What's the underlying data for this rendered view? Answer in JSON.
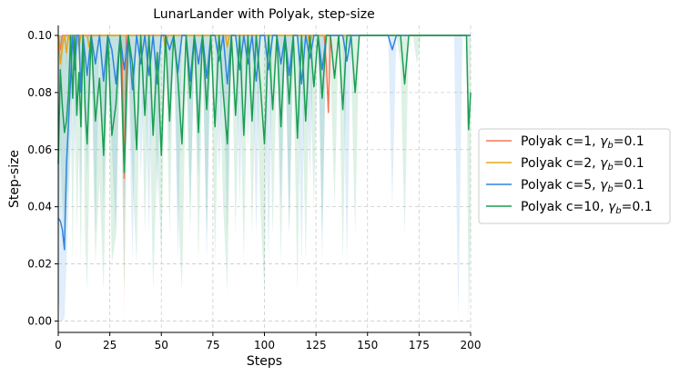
{
  "chart_data": {
    "type": "line",
    "title": "LunarLander with Polyak, step-size",
    "xlabel": "Steps",
    "ylabel": "Step-size",
    "xlim": [
      0,
      200
    ],
    "ylim": [
      -0.004,
      0.1035
    ],
    "xticks": [
      0,
      25,
      50,
      75,
      100,
      125,
      150,
      175,
      200
    ],
    "xtick_labels": [
      "0",
      "25",
      "50",
      "75",
      "100",
      "125",
      "150",
      "175",
      "200"
    ],
    "yticks": [
      0.0,
      0.02,
      0.04,
      0.06,
      0.08,
      0.1
    ],
    "ytick_labels": [
      "0.00",
      "0.02",
      "0.04",
      "0.06",
      "0.08",
      "0.10"
    ],
    "grid": true,
    "legend": {
      "position": "right"
    },
    "series": [
      {
        "name_prefix": "Polyak c=1, ",
        "name_gamma": "γ",
        "name_sub": "b",
        "name_suffix": "=0.1",
        "color": "#f0785a",
        "x": [
          0,
          1,
          2,
          3,
          4,
          5,
          6,
          7,
          8,
          9,
          10,
          29,
          30,
          31,
          32,
          33,
          34,
          35,
          127,
          128,
          129,
          130,
          131,
          132,
          133,
          200
        ],
        "values": [
          0.1,
          0.095,
          0.1,
          0.1,
          0.1,
          0.1,
          0.1,
          0.1,
          0.1,
          0.1,
          0.1,
          0.1,
          0.1,
          0.09,
          0.05,
          0.1,
          0.1,
          0.1,
          0.1,
          0.1,
          0.1,
          0.09,
          0.073,
          0.1,
          0.1,
          0.1
        ],
        "band_low": [
          0.1,
          0.092,
          0.1,
          0.1,
          0.1,
          0.1,
          0.1,
          0.1,
          0.1,
          0.1,
          0.1,
          0.1,
          0.1,
          0.06,
          0.0,
          0.1,
          0.1,
          0.1,
          0.1,
          0.1,
          0.1,
          0.085,
          0.07,
          0.1,
          0.1,
          0.1
        ]
      },
      {
        "name_prefix": "Polyak c=2, ",
        "name_gamma": "γ",
        "name_sub": "b",
        "name_suffix": "=0.1",
        "color": "#e6a817",
        "x": [
          0,
          1,
          2,
          3,
          4,
          5,
          6,
          7,
          8,
          9,
          10,
          11,
          12,
          14,
          15,
          16,
          17,
          50,
          51,
          52,
          53,
          54,
          80,
          81,
          82,
          83,
          84,
          85,
          120,
          121,
          122,
          123,
          200
        ],
        "values": [
          0.1,
          0.09,
          0.096,
          0.1,
          0.094,
          0.1,
          0.098,
          0.1,
          0.1,
          0.1,
          0.096,
          0.1,
          0.1,
          0.1,
          0.096,
          0.1,
          0.1,
          0.1,
          0.1,
          0.095,
          0.1,
          0.1,
          0.1,
          0.1,
          0.096,
          0.1,
          0.1,
          0.1,
          0.1,
          0.1,
          0.097,
          0.1,
          0.1
        ],
        "band_low": [
          0.1,
          0.085,
          0.09,
          0.1,
          0.088,
          0.1,
          0.094,
          0.1,
          0.1,
          0.1,
          0.09,
          0.1,
          0.1,
          0.1,
          0.09,
          0.1,
          0.1,
          0.1,
          0.1,
          0.09,
          0.1,
          0.1,
          0.1,
          0.1,
          0.09,
          0.1,
          0.1,
          0.1,
          0.1,
          0.1,
          0.092,
          0.1,
          0.1
        ]
      },
      {
        "name_prefix": "Polyak c=5, ",
        "name_gamma": "γ",
        "name_sub": "b",
        "name_suffix": "=0.1",
        "color": "#2f84e0",
        "x": [
          0,
          1,
          2,
          3,
          4,
          5,
          6,
          7,
          8,
          9,
          10,
          11,
          12,
          14,
          16,
          18,
          20,
          22,
          24,
          26,
          28,
          30,
          32,
          34,
          36,
          38,
          40,
          42,
          44,
          46,
          48,
          50,
          52,
          54,
          56,
          58,
          60,
          62,
          64,
          66,
          68,
          70,
          72,
          74,
          76,
          78,
          80,
          82,
          84,
          86,
          88,
          90,
          92,
          94,
          96,
          98,
          100,
          102,
          104,
          106,
          108,
          110,
          112,
          114,
          116,
          118,
          120,
          122,
          124,
          126,
          128,
          130,
          132,
          134,
          136,
          138,
          140,
          142,
          144,
          146,
          148,
          150,
          152,
          154,
          156,
          158,
          160,
          162,
          164,
          166,
          168,
          170,
          172,
          174,
          176,
          178,
          180,
          182,
          184,
          186,
          188,
          190,
          192,
          194,
          196,
          198,
          200
        ],
        "values": [
          0.036,
          0.035,
          0.032,
          0.025,
          0.055,
          0.07,
          0.085,
          0.1,
          0.088,
          0.1,
          0.1,
          0.08,
          0.1,
          0.086,
          0.1,
          0.09,
          0.1,
          0.084,
          0.1,
          0.095,
          0.083,
          0.1,
          0.088,
          0.1,
          0.081,
          0.1,
          0.09,
          0.1,
          0.086,
          0.1,
          0.083,
          0.1,
          0.1,
          0.095,
          0.1,
          0.087,
          0.1,
          0.1,
          0.084,
          0.1,
          0.09,
          0.1,
          0.085,
          0.1,
          0.1,
          0.091,
          0.1,
          0.083,
          0.1,
          0.1,
          0.088,
          0.1,
          0.09,
          0.1,
          0.084,
          0.1,
          0.1,
          0.088,
          0.1,
          0.1,
          0.09,
          0.1,
          0.086,
          0.1,
          0.1,
          0.083,
          0.1,
          0.092,
          0.1,
          0.1,
          0.088,
          0.1,
          0.1,
          0.1,
          0.1,
          0.1,
          0.091,
          0.1,
          0.1,
          0.1,
          0.1,
          0.1,
          0.1,
          0.1,
          0.1,
          0.1,
          0.1,
          0.095,
          0.1,
          0.1,
          0.1,
          0.1,
          0.1,
          0.1,
          0.1,
          0.1,
          0.1,
          0.1,
          0.1,
          0.1,
          0.1,
          0.1,
          0.1,
          0.1,
          0.1,
          0.1,
          0.1
        ],
        "band_low": [
          0.01,
          0.0,
          0.0,
          0.001,
          0.02,
          0.04,
          0.06,
          0.09,
          0.05,
          0.09,
          0.1,
          0.04,
          0.09,
          0.05,
          0.1,
          0.03,
          0.1,
          0.04,
          0.09,
          0.06,
          0.03,
          0.1,
          0.04,
          0.09,
          0.02,
          0.1,
          0.05,
          0.09,
          0.03,
          0.1,
          0.04,
          0.1,
          0.1,
          0.06,
          0.1,
          0.02,
          0.1,
          0.1,
          0.04,
          0.09,
          0.05,
          0.1,
          0.02,
          0.1,
          0.1,
          0.05,
          0.09,
          0.03,
          0.1,
          0.1,
          0.04,
          0.1,
          0.06,
          0.1,
          0.03,
          0.1,
          0.1,
          0.02,
          0.1,
          0.1,
          0.04,
          0.1,
          0.03,
          0.1,
          0.1,
          0.02,
          0.1,
          0.05,
          0.1,
          0.1,
          0.02,
          0.1,
          0.1,
          0.1,
          0.1,
          0.1,
          0.02,
          0.1,
          0.1,
          0.1,
          0.1,
          0.1,
          0.1,
          0.1,
          0.1,
          0.1,
          0.1,
          0.04,
          0.1,
          0.1,
          0.1,
          0.1,
          0.1,
          0.1,
          0.1,
          0.1,
          0.1,
          0.1,
          0.1,
          0.1,
          0.1,
          0.1,
          0.1,
          0.0,
          0.1,
          0.1,
          0.1
        ]
      },
      {
        "name_prefix": "Polyak c=10, ",
        "name_gamma": "γ",
        "name_sub": "b",
        "name_suffix": "=0.1",
        "color": "#1a9e52",
        "x": [
          0,
          1,
          2,
          3,
          4,
          5,
          6,
          7,
          8,
          9,
          10,
          11,
          12,
          13,
          14,
          16,
          18,
          20,
          22,
          24,
          26,
          28,
          30,
          32,
          34,
          36,
          38,
          40,
          42,
          44,
          46,
          48,
          50,
          52,
          54,
          56,
          58,
          60,
          62,
          64,
          66,
          68,
          70,
          72,
          74,
          76,
          78,
          80,
          82,
          84,
          86,
          88,
          90,
          92,
          94,
          96,
          98,
          100,
          102,
          104,
          106,
          108,
          110,
          112,
          114,
          116,
          118,
          120,
          122,
          124,
          126,
          128,
          130,
          132,
          134,
          136,
          138,
          140,
          142,
          144,
          146,
          148,
          150,
          152,
          154,
          156,
          158,
          160,
          162,
          164,
          166,
          168,
          170,
          172,
          174,
          176,
          178,
          180,
          182,
          184,
          186,
          188,
          190,
          192,
          194,
          196,
          198,
          199,
          200
        ],
        "values": [
          0.055,
          0.088,
          0.075,
          0.066,
          0.07,
          0.08,
          0.1,
          0.078,
          0.1,
          0.072,
          0.087,
          0.068,
          0.1,
          0.075,
          0.062,
          0.1,
          0.07,
          0.085,
          0.058,
          0.1,
          0.065,
          0.076,
          0.1,
          0.052,
          0.1,
          0.09,
          0.06,
          0.1,
          0.072,
          0.1,
          0.065,
          0.094,
          0.058,
          0.1,
          0.07,
          0.1,
          0.085,
          0.062,
          0.1,
          0.078,
          0.1,
          0.066,
          0.1,
          0.074,
          0.1,
          0.068,
          0.1,
          0.08,
          0.062,
          0.1,
          0.072,
          0.1,
          0.065,
          0.1,
          0.07,
          0.1,
          0.083,
          0.062,
          0.1,
          0.074,
          0.1,
          0.068,
          0.1,
          0.076,
          0.1,
          0.064,
          0.1,
          0.07,
          0.1,
          0.082,
          0.1,
          0.078,
          0.1,
          0.1,
          0.085,
          0.1,
          0.074,
          0.1,
          0.1,
          0.08,
          0.1,
          0.1,
          0.1,
          0.1,
          0.1,
          0.1,
          0.1,
          0.1,
          0.1,
          0.1,
          0.1,
          0.083,
          0.1,
          0.1,
          0.1,
          0.1,
          0.1,
          0.1,
          0.1,
          0.1,
          0.1,
          0.1,
          0.1,
          0.1,
          0.1,
          0.1,
          0.1,
          0.067,
          0.08
        ],
        "band_low": [
          0.02,
          0.06,
          0.04,
          0.03,
          0.04,
          0.05,
          0.08,
          0.02,
          0.09,
          0.03,
          0.06,
          0.02,
          0.09,
          0.03,
          0.01,
          0.09,
          0.02,
          0.05,
          0.01,
          0.09,
          0.02,
          0.03,
          0.1,
          0.01,
          0.09,
          0.05,
          0.02,
          0.1,
          0.03,
          0.09,
          0.01,
          0.06,
          0.02,
          0.1,
          0.03,
          0.1,
          0.04,
          0.01,
          0.09,
          0.03,
          0.1,
          0.02,
          0.09,
          0.03,
          0.1,
          0.02,
          0.09,
          0.04,
          0.01,
          0.1,
          0.03,
          0.09,
          0.02,
          0.1,
          0.03,
          0.09,
          0.04,
          0.01,
          0.1,
          0.03,
          0.09,
          0.02,
          0.1,
          0.03,
          0.09,
          0.01,
          0.1,
          0.02,
          0.09,
          0.04,
          0.1,
          0.03,
          0.1,
          0.09,
          0.04,
          0.1,
          0.02,
          0.1,
          0.09,
          0.03,
          0.1,
          0.1,
          0.1,
          0.1,
          0.1,
          0.1,
          0.1,
          0.1,
          0.1,
          0.1,
          0.09,
          0.03,
          0.1,
          0.1,
          0.09,
          0.1,
          0.1,
          0.1,
          0.1,
          0.1,
          0.1,
          0.1,
          0.1,
          0.1,
          0.1,
          0.1,
          0.1,
          0.0,
          0.03
        ]
      }
    ]
  }
}
